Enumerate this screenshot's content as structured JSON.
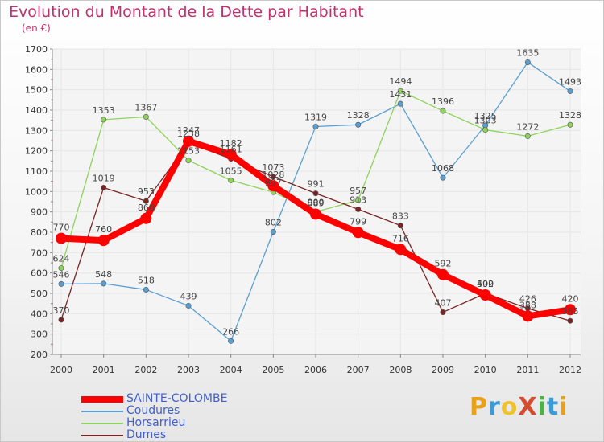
{
  "title": "Evolution du Montant de la Dette par Habitant",
  "unit_note": "(en €)",
  "logo": {
    "text": "ProXiti",
    "letter_colors": [
      "#e8a21a",
      "#3a9bd6",
      "#f0c22b",
      "#d64a2e",
      "#4fb04a",
      "#3a9bd6",
      "#e8a21a"
    ]
  },
  "legend": [
    {
      "name": "SAINTE-COLOMBE",
      "color": "#ff0000"
    },
    {
      "name": "Coudures",
      "color": "#5a9fd4"
    },
    {
      "name": "Horsarrieu",
      "color": "#8ed45a"
    },
    {
      "name": "Dumes",
      "color": "#7a2323"
    }
  ],
  "chart_data": {
    "type": "line",
    "title": "Evolution du Montant de la Dette par Habitant",
    "ylabel": "(en €)",
    "x": [
      "2000",
      "2001",
      "2002",
      "2003",
      "2004",
      "2005",
      "2006",
      "2007",
      "2008",
      "2009",
      "2010",
      "2011",
      "2012"
    ],
    "ylim": [
      200,
      1700
    ],
    "yticks": [
      200,
      300,
      400,
      500,
      600,
      700,
      800,
      900,
      1000,
      1100,
      1200,
      1300,
      1400,
      1500,
      1600,
      1700
    ],
    "grid": true,
    "legend_position": "bottom-left",
    "series": [
      {
        "name": "Coudures",
        "color": "#5a9fd4",
        "values": [
          546,
          548,
          518,
          439,
          266,
          802,
          1319,
          1328,
          1431,
          1068,
          1325,
          1635,
          1493
        ]
      },
      {
        "name": "Horsarrieu",
        "color": "#8ed45a",
        "values": [
          624,
          1353,
          1367,
          1153,
          1055,
          997,
          900,
          957,
          1494,
          1396,
          1303,
          1272,
          1328
        ]
      },
      {
        "name": "Dumes",
        "color": "#7a2323",
        "values": [
          370,
          1019,
          953,
          1238,
          1161,
          1073,
          991,
          913,
          833,
          407,
          500,
          426,
          365
        ]
      },
      {
        "name": "SAINTE-COLOMBE",
        "color": "#ff0000",
        "values": [
          770,
          760,
          868,
          1247,
          1182,
          1028,
          889,
          799,
          716,
          592,
          492,
          388,
          420
        ]
      }
    ]
  }
}
